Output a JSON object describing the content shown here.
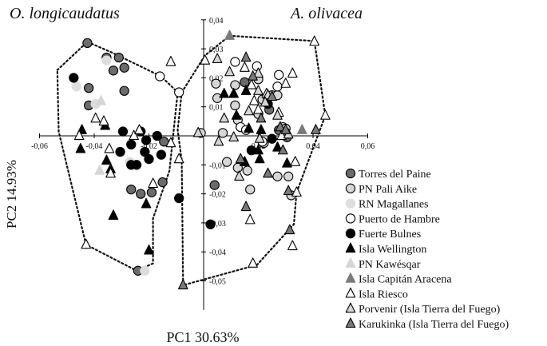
{
  "chart_data": {
    "type": "scatter",
    "title": "",
    "xlabel": "PC1 30.63%",
    "ylabel": "PC2 14.93%",
    "xlim": [
      -0.06,
      0.06
    ],
    "ylim": [
      -0.06,
      0.04
    ],
    "x_ticks": [
      -0.06,
      -0.04,
      -0.02,
      0.02,
      0.04,
      0.06
    ],
    "x_tick_labels": [
      "-0,06",
      "-0,04",
      "-0,02",
      "0,02",
      "0,04",
      "0,06"
    ],
    "y_ticks": [
      0.04,
      0.03,
      0.02,
      0.01,
      -0.01,
      -0.02,
      -0.03,
      -0.04,
      -0.05
    ],
    "y_tick_labels": [
      "0,04",
      "0,03",
      "0,02",
      "0,01",
      "-0,01",
      "-0,02",
      "-0,03",
      "-0,04",
      "-0,05"
    ],
    "grid": false,
    "legend_position": "bottom-right",
    "groups": [
      {
        "label": "O. longicaudatus",
        "hull": [
          [
            -0.0535,
            0.0227
          ],
          [
            -0.0425,
            0.0324
          ],
          [
            -0.0335,
            0.0287
          ],
          [
            -0.0155,
            0.0205
          ],
          [
            -0.0095,
            0.015
          ],
          [
            -0.0125,
            -0.012
          ],
          [
            -0.0185,
            -0.0285
          ],
          [
            -0.0185,
            -0.044
          ],
          [
            -0.0245,
            -0.0465
          ],
          [
            -0.043,
            -0.0375
          ],
          [
            -0.053,
            0.0015
          ]
        ]
      },
      {
        "label": "A. olivacea",
        "hull": [
          [
            -0.008,
            0.015
          ],
          [
            0.0005,
            0.0277
          ],
          [
            0.0095,
            0.0345
          ],
          [
            0.0405,
            0.0327
          ],
          [
            0.0445,
            0.007
          ],
          [
            0.034,
            -0.0195
          ],
          [
            0.033,
            -0.0305
          ],
          [
            0.0195,
            -0.0445
          ],
          [
            -0.0075,
            -0.0515
          ],
          [
            -0.008,
            -0.0085
          ],
          [
            -0.0095,
            0.002
          ]
        ]
      }
    ],
    "series": [
      {
        "name": "Torres del Paine",
        "marker": "circle",
        "fill": "#6b6b6b",
        "stroke": "#000000",
        "points": [
          [
            -0.0425,
            0.032
          ],
          [
            -0.0355,
            0.027
          ],
          [
            -0.031,
            0.027
          ],
          [
            -0.033,
            0.0225
          ],
          [
            -0.029,
            0.0235
          ],
          [
            -0.042,
            0.0165
          ],
          [
            -0.029,
            0.0155
          ],
          [
            -0.042,
            0.0105
          ],
          [
            -0.0145,
            -0.002
          ],
          [
            -0.0265,
            -0.0185
          ],
          [
            -0.019,
            -0.0195
          ],
          [
            -0.023,
            -0.02
          ],
          [
            -0.015,
            -0.016
          ],
          [
            -0.024,
            -0.0465
          ],
          [
            0.004,
            -0.017
          ],
          [
            0.015,
            0.0185
          ],
          [
            0.024,
            0.009
          ],
          [
            0.0305,
            -0.0005
          ],
          [
            0.0275,
            0.002
          ]
        ]
      },
      {
        "name": "PN Pali Aike",
        "marker": "circle",
        "fill": "#d6d6d6",
        "stroke": "#000000",
        "points": [
          [
            0.0045,
            0.018
          ],
          [
            0.005,
            0.013
          ],
          [
            0.0115,
            0.0175
          ],
          [
            0.02,
            0.0195
          ],
          [
            0.0115,
            0.0105
          ],
          [
            0.0125,
            0.0055
          ],
          [
            0.02,
            0.0075
          ],
          [
            0.0215,
            0.0125
          ],
          [
            0.025,
            0.014
          ],
          [
            0.029,
            0.003
          ],
          [
            0.03,
            0.0025
          ],
          [
            0.007,
            0.001
          ],
          [
            0.0085,
            -0.009
          ],
          [
            0.0125,
            -0.011
          ],
          [
            0.016,
            -0.012
          ],
          [
            0.017,
            -0.0185
          ],
          [
            0.027,
            -0.014
          ],
          [
            0.031,
            -0.014
          ],
          [
            0.032,
            -0.0205
          ],
          [
            0.022,
            -0.0025
          ],
          [
            -0.001,
            0.001
          ],
          [
            0.027,
            0.014
          ]
        ]
      },
      {
        "name": "RN Magallanes",
        "marker": "circle",
        "fill": "#dddddd",
        "stroke": "#dddddd",
        "points": [
          [
            -0.0355,
            0.026
          ],
          [
            -0.0465,
            0.017
          ],
          [
            -0.0395,
            0.011
          ],
          [
            -0.027,
            -0.009
          ],
          [
            -0.0215,
            -0.0465
          ]
        ]
      },
      {
        "name": "Puerto de Hambre",
        "marker": "circle",
        "fill": "#ffffff",
        "stroke": "#000000",
        "points": [
          [
            -0.016,
            0.0205
          ],
          [
            -0.009,
            0.015
          ],
          [
            0.0115,
            0.0255
          ],
          [
            0.0195,
            0.024
          ],
          [
            0.0275,
            0.021
          ],
          [
            0.027,
            0.017
          ],
          [
            0.0135,
            0.003
          ],
          [
            0.0215,
            -0.002
          ],
          [
            0.0155,
            0.002
          ]
        ]
      },
      {
        "name": "Fuerte Bulnes",
        "marker": "circle",
        "fill": "#000000",
        "stroke": "#000000",
        "points": [
          [
            -0.0475,
            0.02
          ],
          [
            -0.0295,
            0.0015
          ],
          [
            -0.023,
            0.0015
          ],
          [
            -0.021,
            -0.0015
          ],
          [
            -0.017,
            0.0
          ],
          [
            -0.0215,
            -0.0055
          ],
          [
            -0.0245,
            -0.01
          ],
          [
            -0.0305,
            -0.0055
          ],
          [
            -0.0265,
            -0.003
          ],
          [
            -0.02,
            -0.008
          ],
          [
            -0.0155,
            -0.0065
          ],
          [
            -0.0265,
            -0.01
          ],
          [
            -0.009,
            -0.0215
          ],
          [
            0.0235,
            0.011
          ],
          [
            0.025,
            -0.001
          ],
          [
            0.0025,
            -0.0305
          ],
          [
            0.0175,
            -0.005
          ]
        ]
      },
      {
        "name": "Isla Wellington",
        "marker": "triangle",
        "fill": "#000000",
        "stroke": "#000000",
        "points": [
          [
            -0.0445,
            0.002
          ],
          [
            -0.045,
            -0.0045
          ],
          [
            -0.036,
            0.0035
          ],
          [
            -0.0355,
            -0.0085
          ],
          [
            -0.034,
            -0.0115
          ],
          [
            -0.033,
            -0.0275
          ],
          [
            -0.021,
            -0.0235
          ],
          [
            -0.02,
            -0.0395
          ],
          [
            0.0075,
            0.0145
          ],
          [
            0.011,
            0.0145
          ],
          [
            0.012,
            0.007
          ],
          [
            0.0165,
            0.0025
          ],
          [
            0.0155,
            0.0155
          ],
          [
            0.021,
            0.002
          ],
          [
            0.027,
            -0.004
          ],
          [
            0.0305,
            -0.0095
          ],
          [
            0.0205,
            -0.008
          ],
          [
            0.015,
            -0.009
          ],
          [
            0.02,
            -0.005
          ]
        ]
      },
      {
        "name": "PN Kawésqar",
        "marker": "triangle",
        "fill": "#d6d6d6",
        "stroke": "#d6d6d6",
        "points": [
          [
            -0.0375,
            0.012
          ],
          [
            -0.038,
            -0.012
          ]
        ]
      },
      {
        "name": "Isla Capitán Aracena",
        "marker": "triangle",
        "fill": "#7a7a7a",
        "stroke": "#7a7a7a",
        "points": [
          [
            0.0095,
            0.0345
          ],
          [
            0.036,
            0.002
          ]
        ]
      },
      {
        "name": "Isla Riesco",
        "marker": "triangle",
        "fill": "#ffffff",
        "stroke": "#000000",
        "points": [
          [
            -0.0455,
            0.0
          ],
          [
            -0.0395,
            0.006
          ],
          [
            -0.0365,
            0.005
          ],
          [
            -0.0345,
            -0.0045
          ],
          [
            -0.034,
            -0.013
          ],
          [
            -0.0255,
            0.0
          ],
          [
            -0.0235,
            0.002
          ],
          [
            -0.0185,
            -0.0165
          ],
          [
            -0.043,
            -0.0375
          ],
          [
            -0.012,
            0.0255
          ],
          [
            -0.012,
            -0.0025
          ],
          [
            0.0005,
            0.026
          ],
          [
            0.015,
            0.0235
          ],
          [
            0.0175,
            0.0175
          ],
          [
            0.0185,
            0.012
          ],
          [
            0.023,
            0.0145
          ],
          [
            0.03,
            0.018
          ],
          [
            0.0325,
            0.0215
          ],
          [
            0.0285,
            0.0
          ],
          [
            0.0335,
            -0.009
          ],
          [
            0.0405,
            0.0325
          ],
          [
            0.0445,
            0.007
          ],
          [
            -0.009,
            -0.008
          ],
          [
            0.017,
            -0.029
          ],
          [
            0.034,
            -0.0195
          ],
          [
            0.0325,
            -0.038
          ],
          [
            0.018,
            -0.044
          ],
          [
            0.02,
            0.009
          ],
          [
            0.0275,
            0.008
          ]
        ]
      },
      {
        "name": "Porvenir (Isla Tierra del Fuego)",
        "marker": "triangle",
        "fill": "#d6d6d6",
        "stroke": "#000000",
        "points": [
          [
            0.005,
            0.0265
          ],
          [
            0.0095,
            0.022
          ],
          [
            0.02,
            0.0215
          ],
          [
            0.0235,
            0.014
          ],
          [
            0.0165,
            0.0085
          ],
          [
            0.02,
            0.0155
          ],
          [
            0.0225,
            0.0115
          ],
          [
            0.027,
            0.007
          ],
          [
            0.031,
            0.0005
          ],
          [
            0.0055,
            -0.002
          ],
          [
            0.011,
            -0.0005
          ],
          [
            0.0205,
            -0.001
          ],
          [
            0.013,
            -0.014
          ],
          [
            -0.002,
            0.001
          ],
          [
            0.0075,
            0.006
          ]
        ]
      },
      {
        "name": "Karukinka (Isla Tierra del Fuego)",
        "marker": "triangle",
        "fill": "#7a7a7a",
        "stroke": "#000000",
        "points": [
          [
            0.0155,
            0.027
          ],
          [
            0.018,
            0.0205
          ],
          [
            0.025,
            0.0135
          ],
          [
            0.021,
            0.006
          ],
          [
            0.028,
            0.003
          ],
          [
            0.03,
            0.002
          ],
          [
            0.041,
            0.002
          ],
          [
            0.0235,
            -0.013
          ],
          [
            0.031,
            -0.019
          ],
          [
            0.0155,
            -0.0245
          ],
          [
            0.0315,
            -0.0325
          ],
          [
            -0.0075,
            -0.0515
          ],
          [
            0.0135,
            -0.008
          ],
          [
            0.029,
            -0.005
          ]
        ]
      }
    ]
  }
}
